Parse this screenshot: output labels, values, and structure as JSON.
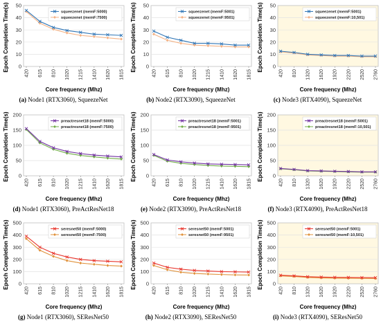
{
  "chart_data": [
    {
      "type": "line",
      "caption_letter": "(a)",
      "caption_text": "Node1 (RTX3060), SqueezeNet",
      "xlabel": "Core frequency (Mhz)",
      "ylabel": "Epoch Completion Time(s)",
      "x": [
        "420",
        "615",
        "810",
        "1020",
        "1215",
        "1410",
        "1620",
        "1815"
      ],
      "ylim": [
        0,
        50
      ],
      "yticks": [
        0,
        10,
        20,
        30,
        40,
        50
      ],
      "bg": "#ffffff",
      "series": [
        {
          "name": "squeezenet (memF:5000)",
          "color": "#2e75b6",
          "marker": "x",
          "values": [
            46,
            37,
            32,
            29.5,
            28,
            26.5,
            26,
            25.5
          ]
        },
        {
          "name": "squeezenet (memF:7500)",
          "color": "#f4b183",
          "marker": "diamond",
          "values": [
            45,
            35.5,
            30.5,
            27.5,
            25.5,
            24.5,
            23.5,
            22.5
          ]
        }
      ]
    },
    {
      "type": "line",
      "caption_letter": "(b)",
      "caption_text": "Node2 (RTX3090), SqueezeNet",
      "xlabel": "Core frequency (Mhz)",
      "ylabel": "Epoch Completion Time(s)",
      "x": [
        "420",
        "615",
        "810",
        "1020",
        "1215",
        "1410",
        "1620",
        "1815"
      ],
      "ylim": [
        0,
        50
      ],
      "yticks": [
        0,
        10,
        20,
        30,
        40,
        50
      ],
      "bg": "#ffffff",
      "series": [
        {
          "name": "squeezenet (memF:5001)",
          "color": "#2e75b6",
          "marker": "x",
          "values": [
            29,
            24,
            21.5,
            19,
            19,
            18.5,
            17.5,
            17.5
          ]
        },
        {
          "name": "squeezenet (memF:9501)",
          "color": "#f4b183",
          "marker": "diamond",
          "values": [
            26.5,
            21.5,
            19,
            17.5,
            17,
            16.5,
            16,
            16
          ]
        }
      ]
    },
    {
      "type": "line",
      "caption_letter": "(c)",
      "caption_text": "Node3 (RTX4090), SqueezeNet",
      "xlabel": "Core frequency (Mhz)",
      "ylabel": "Epoch Completion Time(s)",
      "x": [
        "420",
        "810",
        "1320",
        "1620",
        "1920",
        "2220",
        "2520",
        "2760"
      ],
      "ylim": [
        0,
        50
      ],
      "yticks": [
        0,
        10,
        20,
        30,
        40,
        50
      ],
      "bg": "#fff8e1",
      "series": [
        {
          "name": "squeezenet (memF:5001)",
          "color": "#2e75b6",
          "marker": "x",
          "values": [
            12.5,
            11.5,
            10,
            9.5,
            9,
            9,
            8.5,
            8.5
          ]
        },
        {
          "name": "squeezenet (memF:10,501)",
          "color": "#f4b183",
          "marker": "diamond",
          "values": [
            12,
            11,
            9.5,
            9,
            8.5,
            8.5,
            8,
            8
          ]
        }
      ]
    },
    {
      "type": "line",
      "caption_letter": "(d)",
      "caption_text": "Node1 (RTX3060), PreActResNet18",
      "xlabel": "Core frequency (Mhz)",
      "ylabel": "Epoch Completion Time(s)",
      "x": [
        "420",
        "615",
        "810",
        "1020",
        "1215",
        "1410",
        "1620",
        "1815"
      ],
      "ylim": [
        0,
        200
      ],
      "yticks": [
        0,
        50,
        100,
        150,
        200
      ],
      "bg": "#ffffff",
      "series": [
        {
          "name": "preactresnet18 (memF:5000)",
          "color": "#7030a0",
          "marker": "x",
          "values": [
            155,
            113,
            92,
            80,
            73,
            68,
            65,
            62
          ]
        },
        {
          "name": "preactresnet18 (memF:7500)",
          "color": "#70ad47",
          "marker": "diamond",
          "values": [
            152,
            108,
            87,
            74,
            67,
            62,
            58,
            55
          ]
        }
      ]
    },
    {
      "type": "line",
      "caption_letter": "(e)",
      "caption_text": "Node2 (RTX3090), PreActResNet18",
      "xlabel": "Core frequency (Mhz)",
      "ylabel": "Epoch Completion Time(s)",
      "x": [
        "420",
        "615",
        "810",
        "1020",
        "1215",
        "1410",
        "1620",
        "1815"
      ],
      "ylim": [
        0,
        200
      ],
      "yticks": [
        0,
        50,
        100,
        150,
        200
      ],
      "bg": "#ffffff",
      "series": [
        {
          "name": "preactresnet18 (memF:5001)",
          "color": "#7030a0",
          "marker": "x",
          "values": [
            70,
            52,
            46,
            42,
            39,
            38,
            37,
            36
          ]
        },
        {
          "name": "preactresnet18 (memF:9501)",
          "color": "#70ad47",
          "marker": "diamond",
          "values": [
            67,
            48,
            41,
            37,
            34,
            32,
            31,
            30
          ]
        }
      ]
    },
    {
      "type": "line",
      "caption_letter": "(f)",
      "caption_text": "Node3 (RTX4090), PreActResNet18",
      "xlabel": "Core frequency (Mhz)",
      "ylabel": "Epoch Completion Time(s)",
      "x": [
        "420",
        "810",
        "1320",
        "1620",
        "1920",
        "2220",
        "2520",
        "2760"
      ],
      "ylim": [
        0,
        200
      ],
      "yticks": [
        0,
        50,
        100,
        150,
        200
      ],
      "bg": "#fff8e1",
      "series": [
        {
          "name": "preactresnet18 (memF:5001)",
          "color": "#7030a0",
          "marker": "x",
          "values": [
            24,
            21,
            17,
            16,
            15,
            14,
            13,
            13
          ]
        },
        {
          "name": "preactresnet18 (memF:10,501)",
          "color": "#70ad47",
          "marker": "diamond",
          "values": [
            23,
            20,
            16,
            15,
            14,
            13,
            12,
            12
          ]
        }
      ]
    },
    {
      "type": "line",
      "caption_letter": "(g)",
      "caption_text": "Node1 (RTX3060), SEResNet50",
      "xlabel": "Core frequency (Mhz)",
      "ylabel": "Epoch Completion Time(s)",
      "x": [
        "420",
        "615",
        "810",
        "1020",
        "1215",
        "1410",
        "1620",
        "1815"
      ],
      "ylim": [
        0,
        500
      ],
      "yticks": [
        0,
        100,
        200,
        300,
        400,
        500
      ],
      "bg": "#ffffff",
      "series": [
        {
          "name": "seresnet50 (memF:5000)",
          "color": "#e8332a",
          "marker": "x",
          "values": [
            390,
            300,
            250,
            220,
            200,
            190,
            185,
            180
          ]
        },
        {
          "name": "seresnet50 (memF:7500)",
          "color": "#e0913a",
          "marker": "diamond",
          "values": [
            370,
            275,
            225,
            190,
            170,
            160,
            150,
            145
          ]
        }
      ]
    },
    {
      "type": "line",
      "caption_letter": "(h)",
      "caption_text": "Node2 (RTX3090), SEResNet50",
      "xlabel": "Core frequency (Mhz)",
      "ylabel": "Epoch Completion Time(s)",
      "x": [
        "420",
        "615",
        "810",
        "1020",
        "1215",
        "1410",
        "1620",
        "1815"
      ],
      "ylim": [
        0,
        500
      ],
      "yticks": [
        0,
        100,
        200,
        300,
        400,
        500
      ],
      "bg": "#ffffff",
      "series": [
        {
          "name": "seresnet50 (memF:5001)",
          "color": "#e8332a",
          "marker": "x",
          "values": [
            170,
            135,
            120,
            110,
            105,
            100,
            98,
            96
          ]
        },
        {
          "name": "seresnet50 (memF:9501)",
          "color": "#e0913a",
          "marker": "diamond",
          "values": [
            150,
            115,
            95,
            85,
            80,
            76,
            73,
            72
          ]
        }
      ]
    },
    {
      "type": "line",
      "caption_letter": "(i)",
      "caption_text": "Node3 (RTX4090), SEResNet50",
      "xlabel": "Core frequency (Mhz)",
      "ylabel": "Epoch Completion Time(s)",
      "x": [
        "420",
        "810",
        "1320",
        "1620",
        "1920",
        "2220",
        "2520",
        "2760"
      ],
      "ylim": [
        0,
        500
      ],
      "yticks": [
        0,
        100,
        200,
        300,
        400,
        500
      ],
      "bg": "#fff8e1",
      "series": [
        {
          "name": "seresnet50 (memF:5001)",
          "color": "#e8332a",
          "marker": "x",
          "values": [
            70,
            65,
            58,
            55,
            53,
            52,
            51,
            50
          ]
        },
        {
          "name": "seresnet50 (memF:10,501)",
          "color": "#e0913a",
          "marker": "diamond",
          "values": [
            65,
            60,
            52,
            48,
            46,
            45,
            44,
            43
          ]
        }
      ]
    }
  ]
}
